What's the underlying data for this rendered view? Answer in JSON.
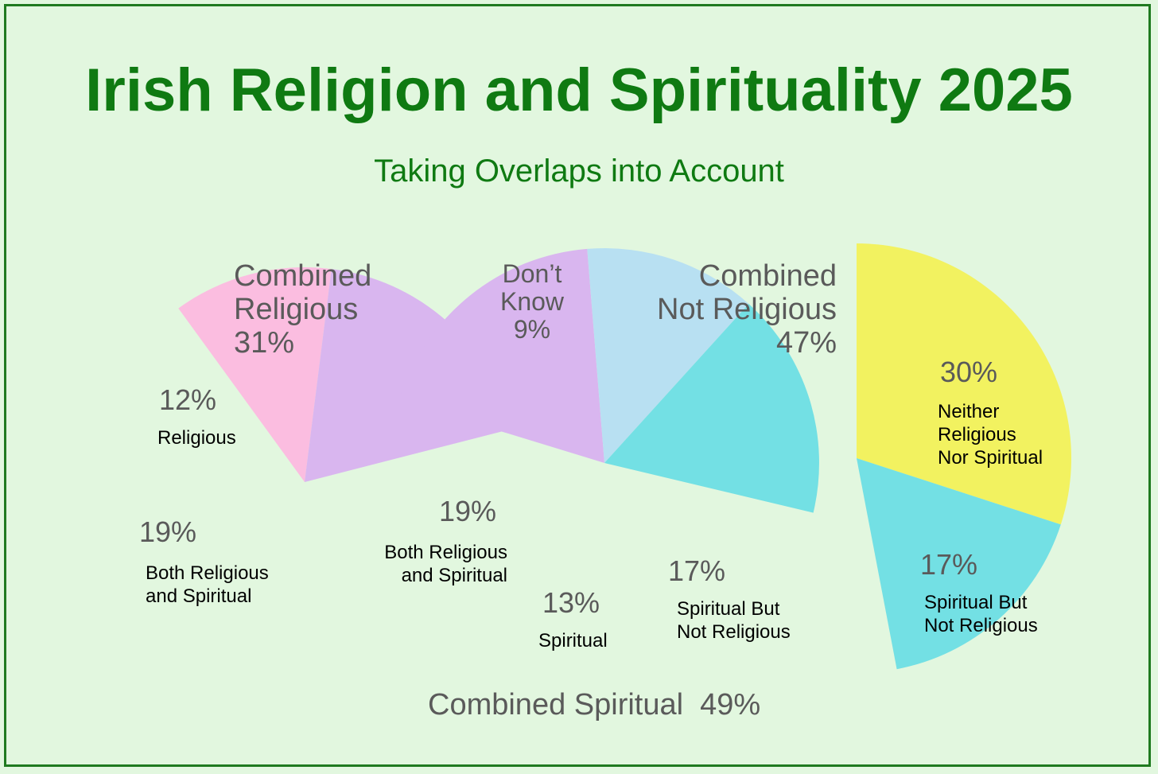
{
  "title": "Irish Religion and Spirituality 2025",
  "subtitle": "Taking Overlaps into Account",
  "groups": {
    "religious": {
      "line1": "Combined",
      "line2": "Religious",
      "line3": "31%"
    },
    "dont_know": {
      "line1": "Don’t",
      "line2": "Know",
      "line3": "9%"
    },
    "not_religious": {
      "line1": "Combined",
      "line2": "Not Religious",
      "line3": "47%"
    },
    "spiritual": {
      "label": "Combined Spiritual  49%"
    }
  },
  "chart_data": [
    {
      "type": "pie",
      "group": "Combined Religious 31%",
      "slices": [
        {
          "label": "Religious",
          "pct_text": "12%",
          "value": 12,
          "color": "#fbbde0"
        },
        {
          "label": "Both Religious and Spiritual",
          "pct_text": "19%",
          "value": 19,
          "color": "#d9b6ef"
        }
      ]
    },
    {
      "type": "pie",
      "group": "Combined Spiritual 49%",
      "slices": [
        {
          "label": "Both Religious and Spiritual",
          "pct_text": "19%",
          "value": 19,
          "color": "#d9b6ef"
        },
        {
          "label": "Spiritual",
          "pct_text": "13%",
          "value": 13,
          "color": "#b8e0f2"
        },
        {
          "label": "Spiritual But Not Religious",
          "pct_text": "17%",
          "value": 17,
          "color": "#73e0e4"
        }
      ]
    },
    {
      "type": "pie",
      "group": "Combined Not Religious 47%",
      "slices": [
        {
          "label": "Neither Religious Nor Spiritual",
          "pct_text": "30%",
          "value": 30,
          "color": "#f2f260"
        },
        {
          "label": "Spiritual But Not Religious",
          "pct_text": "17%",
          "value": 17,
          "color": "#73e0e4"
        }
      ]
    }
  ],
  "text": {
    "left_relig_pct": "12%",
    "left_relig_label": "Religious",
    "left_both_pct": "19%",
    "left_both_l1": "Both Religious",
    "left_both_l2": "and Spiritual",
    "mid_both_pct": "19%",
    "mid_both_l1": "Both Religious",
    "mid_both_l2": "and Spiritual",
    "mid_spir_pct": "13%",
    "mid_spir_label": "Spiritual",
    "mid_sbnr_pct": "17%",
    "mid_sbnr_l1": "Spiritual But",
    "mid_sbnr_l2": "Not Religious",
    "right_neither_pct": "30%",
    "right_neither_l1": "Neither",
    "right_neither_l2": "Religious",
    "right_neither_l3": "Nor Spiritual",
    "right_sbnr_pct": "17%",
    "right_sbnr_l1": "Spiritual But",
    "right_sbnr_l2": "Not Religious"
  }
}
